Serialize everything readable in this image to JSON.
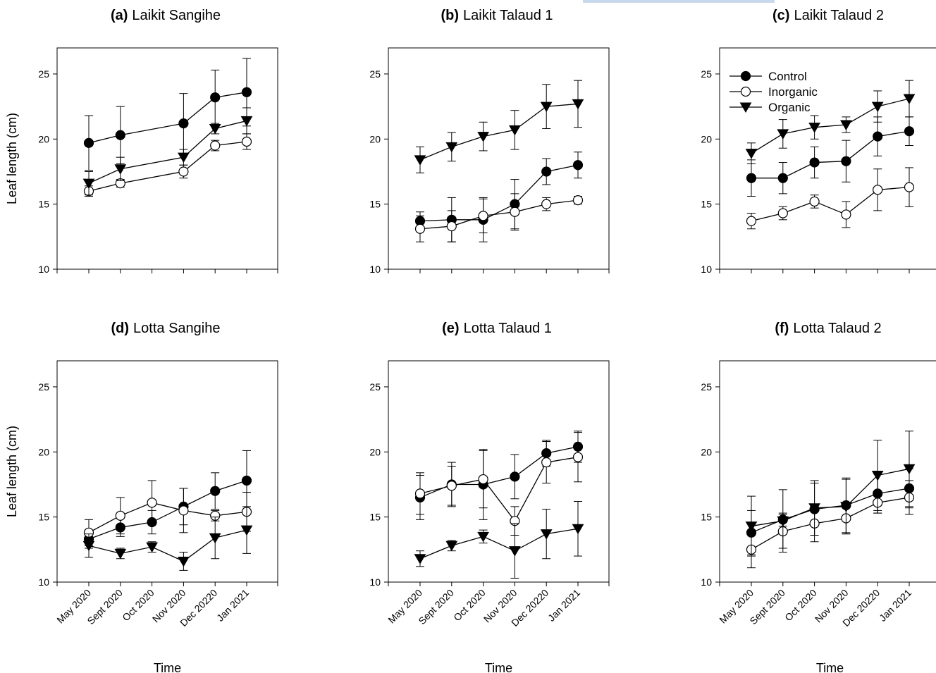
{
  "chart_data": [
    {
      "type": "line",
      "title_label": "(a)",
      "title_text": "Laikit Sangihe",
      "xlabel": "",
      "ylabel": "Leaf length (cm)",
      "ylim": [
        10,
        27
      ],
      "yticks": [
        10,
        15,
        20,
        25
      ],
      "categories": [
        "May 2020",
        "Sept 2020",
        "Oct 2020",
        "Nov 2020",
        "Dec 20220",
        "Jan 2021"
      ],
      "series": [
        {
          "name": "Control",
          "x": [
            0,
            1,
            3,
            4,
            5
          ],
          "values": [
            19.7,
            20.3,
            21.2,
            23.2,
            23.6
          ],
          "errors": [
            2.1,
            2.2,
            2.3,
            2.1,
            2.6
          ]
        },
        {
          "name": "Inorganic",
          "x": [
            0,
            1,
            3,
            4,
            5
          ],
          "values": [
            16.0,
            16.6,
            17.5,
            19.5,
            19.8
          ],
          "errors": [
            0.4,
            0.3,
            0.5,
            0.4,
            0.6
          ]
        },
        {
          "name": "Organic",
          "x": [
            0,
            1,
            3,
            4,
            5
          ],
          "values": [
            16.6,
            17.7,
            18.6,
            20.8,
            21.4
          ],
          "errors": [
            0.9,
            0.9,
            0.6,
            0.4,
            1.0
          ]
        }
      ]
    },
    {
      "type": "line",
      "title_label": "(b)",
      "title_text": "Laikit Talaud 1",
      "xlabel": "",
      "ylabel": "",
      "ylim": [
        10,
        27
      ],
      "yticks": [
        10,
        15,
        20,
        25
      ],
      "categories": [
        "May 2020",
        "Sept 2020",
        "Oct 2020",
        "Nov 2020",
        "Dec 20220",
        "Jan 2021"
      ],
      "series": [
        {
          "name": "Control",
          "x": [
            0,
            1,
            2,
            3,
            4,
            5
          ],
          "values": [
            13.7,
            13.8,
            13.8,
            15.0,
            17.5,
            18.0
          ],
          "errors": [
            0.7,
            1.7,
            1.7,
            1.9,
            1.0,
            1.0
          ]
        },
        {
          "name": "Inorganic",
          "x": [
            0,
            1,
            2,
            3,
            4,
            5
          ],
          "values": [
            13.1,
            13.3,
            14.1,
            14.4,
            15.0,
            15.3
          ],
          "errors": [
            1.0,
            1.2,
            1.3,
            1.4,
            0.5,
            0.3
          ]
        },
        {
          "name": "Organic",
          "x": [
            0,
            1,
            2,
            3,
            4,
            5
          ],
          "values": [
            18.4,
            19.4,
            20.2,
            20.7,
            22.5,
            22.7
          ],
          "errors": [
            1.0,
            1.1,
            1.1,
            1.5,
            1.7,
            1.8
          ]
        }
      ]
    },
    {
      "type": "line",
      "title_label": "(c)",
      "title_text": "Laikit Talaud 2",
      "xlabel": "",
      "ylabel": "",
      "ylim": [
        10,
        27
      ],
      "yticks": [
        10,
        15,
        20,
        25
      ],
      "categories": [
        "May 2020",
        "Sept 2020",
        "Oct 2020",
        "Nov 2020",
        "Dec 20220",
        "Jan 2021"
      ],
      "legend": {
        "position": "top-left",
        "entries": [
          "Control",
          "Inorganic",
          "Organic"
        ]
      },
      "series": [
        {
          "name": "Control",
          "x": [
            0,
            1,
            2,
            3,
            4,
            5
          ],
          "values": [
            17.0,
            17.0,
            18.2,
            18.3,
            20.2,
            20.6
          ],
          "errors": [
            1.4,
            1.2,
            1.2,
            1.6,
            1.5,
            1.1
          ]
        },
        {
          "name": "Inorganic",
          "x": [
            0,
            1,
            2,
            3,
            4,
            5
          ],
          "values": [
            13.7,
            14.3,
            15.2,
            14.2,
            16.1,
            16.3
          ],
          "errors": [
            0.6,
            0.5,
            0.5,
            1.0,
            1.6,
            1.5
          ]
        },
        {
          "name": "Organic",
          "x": [
            0,
            1,
            2,
            3,
            4,
            5
          ],
          "values": [
            18.9,
            20.4,
            20.9,
            21.1,
            22.5,
            23.1
          ],
          "errors": [
            0.8,
            1.1,
            0.9,
            0.6,
            1.2,
            1.4
          ]
        }
      ]
    },
    {
      "type": "line",
      "title_label": "(d)",
      "title_text": "Lotta Sangihe",
      "xlabel": "Time",
      "ylabel": "Leaf length (cm)",
      "ylim": [
        10,
        27
      ],
      "yticks": [
        10,
        15,
        20,
        25
      ],
      "categories": [
        "May 2020",
        "Sept 2020",
        "Oct 2020",
        "Nov 2020",
        "Dec 20220",
        "Jan 2021"
      ],
      "series": [
        {
          "name": "Control",
          "x": [
            0,
            1,
            2,
            3,
            4,
            5
          ],
          "values": [
            13.3,
            14.2,
            14.6,
            15.8,
            17.0,
            17.8
          ],
          "errors": [
            0.7,
            0.7,
            0.9,
            1.4,
            1.4,
            2.3
          ]
        },
        {
          "name": "Inorganic",
          "x": [
            0,
            1,
            2,
            3,
            4,
            5
          ],
          "values": [
            13.8,
            15.1,
            16.1,
            15.5,
            15.1,
            15.4
          ],
          "errors": [
            1.0,
            1.4,
            1.7,
            1.7,
            0.4,
            1.5
          ]
        },
        {
          "name": "Organic",
          "x": [
            0,
            1,
            2,
            3,
            4,
            5
          ],
          "values": [
            12.8,
            12.2,
            12.7,
            11.6,
            13.4,
            14.0
          ],
          "errors": [
            0.9,
            0.4,
            0.4,
            0.7,
            1.6,
            1.8
          ]
        }
      ]
    },
    {
      "type": "line",
      "title_label": "(e)",
      "title_text": "Lotta Talaud 1",
      "xlabel": "Time",
      "ylabel": "",
      "ylim": [
        10,
        27
      ],
      "yticks": [
        10,
        15,
        20,
        25
      ],
      "categories": [
        "May 2020",
        "Sept 2020",
        "Oct 2020",
        "Nov 2020",
        "Dec 20220",
        "Jan 2021"
      ],
      "series": [
        {
          "name": "Control",
          "x": [
            0,
            1,
            2,
            3,
            4,
            5
          ],
          "values": [
            16.5,
            17.5,
            17.5,
            18.1,
            19.9,
            20.4
          ],
          "errors": [
            1.7,
            1.7,
            2.7,
            1.7,
            1.0,
            1.2
          ]
        },
        {
          "name": "Inorganic",
          "x": [
            0,
            1,
            2,
            3,
            4,
            5
          ],
          "values": [
            16.8,
            17.4,
            17.9,
            14.7,
            19.2,
            19.6
          ],
          "errors": [
            1.6,
            1.5,
            2.2,
            1.1,
            1.6,
            1.9
          ]
        },
        {
          "name": "Organic",
          "x": [
            0,
            1,
            2,
            3,
            4,
            5
          ],
          "values": [
            11.8,
            12.8,
            13.5,
            12.4,
            13.7,
            14.1
          ],
          "errors": [
            0.6,
            0.4,
            0.5,
            2.1,
            1.9,
            2.1
          ]
        }
      ]
    },
    {
      "type": "line",
      "title_label": "(f)",
      "title_text": "Lotta Talaud 2",
      "xlabel": "Time",
      "ylabel": "",
      "ylim": [
        10,
        27
      ],
      "yticks": [
        10,
        15,
        20,
        25
      ],
      "categories": [
        "May 2020",
        "Sept 2020",
        "Oct 2020",
        "Nov 2020",
        "Dec 20220",
        "Jan 2021"
      ],
      "series": [
        {
          "name": "Control",
          "x": [
            0,
            1,
            2,
            3,
            4,
            5
          ],
          "values": [
            13.8,
            14.8,
            15.6,
            15.9,
            16.8,
            17.2
          ],
          "errors": [
            1.7,
            0.5,
            2.0,
            2.1,
            1.5,
            1.5
          ]
        },
        {
          "name": "Inorganic",
          "x": [
            0,
            1,
            2,
            3,
            4,
            5
          ],
          "values": [
            12.5,
            13.9,
            14.5,
            14.9,
            16.1,
            16.5
          ],
          "errors": [
            1.4,
            1.3,
            1.4,
            1.2,
            0.8,
            1.3
          ]
        },
        {
          "name": "Organic",
          "x": [
            0,
            1,
            2,
            3,
            4,
            5
          ],
          "values": [
            14.3,
            14.7,
            15.7,
            15.8,
            18.2,
            18.7
          ],
          "errors": [
            2.3,
            2.4,
            2.1,
            2.1,
            2.7,
            2.9
          ]
        }
      ]
    }
  ],
  "colors": {
    "line": "#000000",
    "marker_fill_closed": "#000000",
    "marker_fill_open": "#ffffff",
    "background": "#ffffff"
  }
}
